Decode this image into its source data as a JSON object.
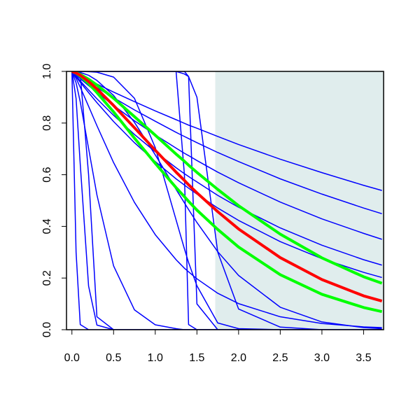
{
  "chart_data": {
    "type": "line",
    "x": [
      0,
      0.05,
      0.1,
      0.2,
      0.3,
      0.5,
      0.75,
      1,
      1.25,
      1.35,
      1.4,
      1.5,
      1.75,
      2,
      2.5,
      3,
      3.5,
      3.72
    ],
    "shaded_region": [
      1.72,
      3.74
    ],
    "shade_color": "#e0eded",
    "xlim": [
      -0.065,
      3.74
    ],
    "ylim": [
      0,
      1
    ],
    "xticks": [
      {
        "value": 0,
        "label": "0.0"
      },
      {
        "value": 0.5,
        "label": "0.5"
      },
      {
        "value": 1,
        "label": "1.0"
      },
      {
        "value": 1.5,
        "label": "1.5"
      },
      {
        "value": 2,
        "label": "2.0"
      },
      {
        "value": 2.5,
        "label": "2.5"
      },
      {
        "value": 3,
        "label": "3.0"
      },
      {
        "value": 3.5,
        "label": "3.5"
      }
    ],
    "yticks": [
      {
        "value": 0,
        "label": "0.0"
      },
      {
        "value": 0.2,
        "label": "0.2"
      },
      {
        "value": 0.4,
        "label": "0.4"
      },
      {
        "value": 0.6,
        "label": "0.6"
      },
      {
        "value": 0.8,
        "label": "0.8"
      },
      {
        "value": 1,
        "label": "1.0"
      }
    ],
    "series": [
      {
        "color": "#0000ff",
        "width": 1.5,
        "values": [
          1,
          0.992,
          0.984,
          0.967,
          0.951,
          0.92,
          0.883,
          0.847,
          0.813,
          0.799,
          0.792,
          0.78,
          0.748,
          0.717,
          0.66,
          0.608,
          0.559,
          0.539
        ]
      },
      {
        "color": "#0000ff",
        "width": 1.5,
        "values": [
          1,
          0.989,
          0.979,
          0.958,
          0.937,
          0.898,
          0.851,
          0.807,
          0.764,
          0.748,
          0.74,
          0.724,
          0.686,
          0.651,
          0.584,
          0.525,
          0.471,
          0.449
        ]
      },
      {
        "color": "#0000ff",
        "width": 1.5,
        "values": [
          1,
          0.986,
          0.972,
          0.945,
          0.919,
          0.868,
          0.809,
          0.754,
          0.703,
          0.683,
          0.674,
          0.655,
          0.61,
          0.569,
          0.494,
          0.429,
          0.373,
          0.35
        ]
      },
      {
        "color": "#0000ff",
        "width": 1.5,
        "values": [
          1,
          0.982,
          0.963,
          0.928,
          0.894,
          0.83,
          0.756,
          0.689,
          0.627,
          0.604,
          0.593,
          0.572,
          0.52,
          0.474,
          0.394,
          0.327,
          0.271,
          0.25
        ]
      },
      {
        "color": "#0000ff",
        "width": 1.5,
        "values": [
          1,
          0.979,
          0.958,
          0.918,
          0.879,
          0.806,
          0.724,
          0.651,
          0.584,
          0.56,
          0.548,
          0.525,
          0.471,
          0.423,
          0.341,
          0.275,
          0.222,
          0.202
        ]
      },
      {
        "color": "#0000ff",
        "width": 1.5,
        "values": [
          1,
          0.3,
          0.02,
          0,
          0,
          0,
          0,
          0,
          0,
          0,
          0,
          0,
          0,
          0,
          0,
          0,
          0,
          0
        ]
      },
      {
        "color": "#0000ff",
        "width": 1.5,
        "values": [
          1,
          1,
          0.99,
          0.6,
          0.05,
          0,
          0,
          0,
          0,
          0,
          0,
          0,
          0,
          0,
          0,
          0,
          0,
          0
        ]
      },
      {
        "color": "#0000ff",
        "width": 1.5,
        "values": [
          1,
          1,
          1,
          1,
          1,
          1,
          1,
          1,
          1,
          0.6,
          0.02,
          0,
          0,
          0,
          0,
          0,
          0,
          0
        ]
      },
      {
        "color": "#0000ff",
        "width": 1.5,
        "values": [
          1,
          1,
          1,
          1,
          1,
          1,
          1,
          1,
          1,
          1,
          0.98,
          0.1,
          0,
          0,
          0,
          0,
          0,
          0
        ]
      },
      {
        "color": "#0000ff",
        "width": 1.5,
        "values": [
          1,
          1,
          1,
          1,
          1,
          1,
          1,
          1,
          1,
          0.99,
          0.98,
          0.9,
          0.3,
          0.08,
          0.01,
          0,
          0,
          0
        ]
      },
      {
        "color": "#0000ff",
        "width": 1.5,
        "values": [
          1,
          0.956,
          0.882,
          0.702,
          0.522,
          0.247,
          0.077,
          0.019,
          0.004,
          0,
          0,
          0,
          0,
          0,
          0,
          0,
          0,
          0
        ]
      },
      {
        "color": "#0000ff",
        "width": 1.5,
        "values": [
          1,
          0.973,
          0.939,
          0.865,
          0.79,
          0.647,
          0.493,
          0.368,
          0.271,
          0.238,
          0.224,
          0.197,
          0.141,
          0.101,
          0.05,
          0.024,
          0.011,
          0.008
        ]
      },
      {
        "color": "#0000ff",
        "width": 1.5,
        "values": [
          1,
          0.895,
          0.641,
          0.169,
          0.018,
          0,
          0,
          0,
          0,
          0,
          0,
          0,
          0,
          0,
          0,
          0,
          0,
          0
        ]
      },
      {
        "color": "#0000ff",
        "width": 1.5,
        "values": [
          1,
          1,
          1,
          0.999,
          0.997,
          0.978,
          0.896,
          0.705,
          0.425,
          0.313,
          0.26,
          0.17,
          0.026,
          0.004,
          0,
          0,
          0,
          0
        ]
      },
      {
        "color": "#0000ff",
        "width": 1.5,
        "values": [
          1,
          0.999,
          0.996,
          0.985,
          0.965,
          0.907,
          0.803,
          0.677,
          0.543,
          0.491,
          0.465,
          0.415,
          0.302,
          0.21,
          0.087,
          0.03,
          0.008,
          0.004
        ]
      },
      {
        "color": "#00ff00",
        "width": 4,
        "values": [
          1,
          0.995,
          0.988,
          0.97,
          0.947,
          0.896,
          0.825,
          0.753,
          0.68,
          0.652,
          0.637,
          0.609,
          0.543,
          0.48,
          0.37,
          0.278,
          0.205,
          0.18
        ]
      },
      {
        "color": "#00ff00",
        "width": 4,
        "values": [
          1,
          0.993,
          0.982,
          0.953,
          0.918,
          0.843,
          0.742,
          0.644,
          0.55,
          0.515,
          0.497,
          0.463,
          0.388,
          0.32,
          0.213,
          0.137,
          0.086,
          0.07
        ]
      },
      {
        "color": "#ff0000",
        "width": 4,
        "values": [
          1,
          0.994,
          0.985,
          0.961,
          0.932,
          0.868,
          0.782,
          0.695,
          0.61,
          0.578,
          0.561,
          0.53,
          0.457,
          0.39,
          0.279,
          0.194,
          0.131,
          0.111
        ]
      }
    ]
  }
}
